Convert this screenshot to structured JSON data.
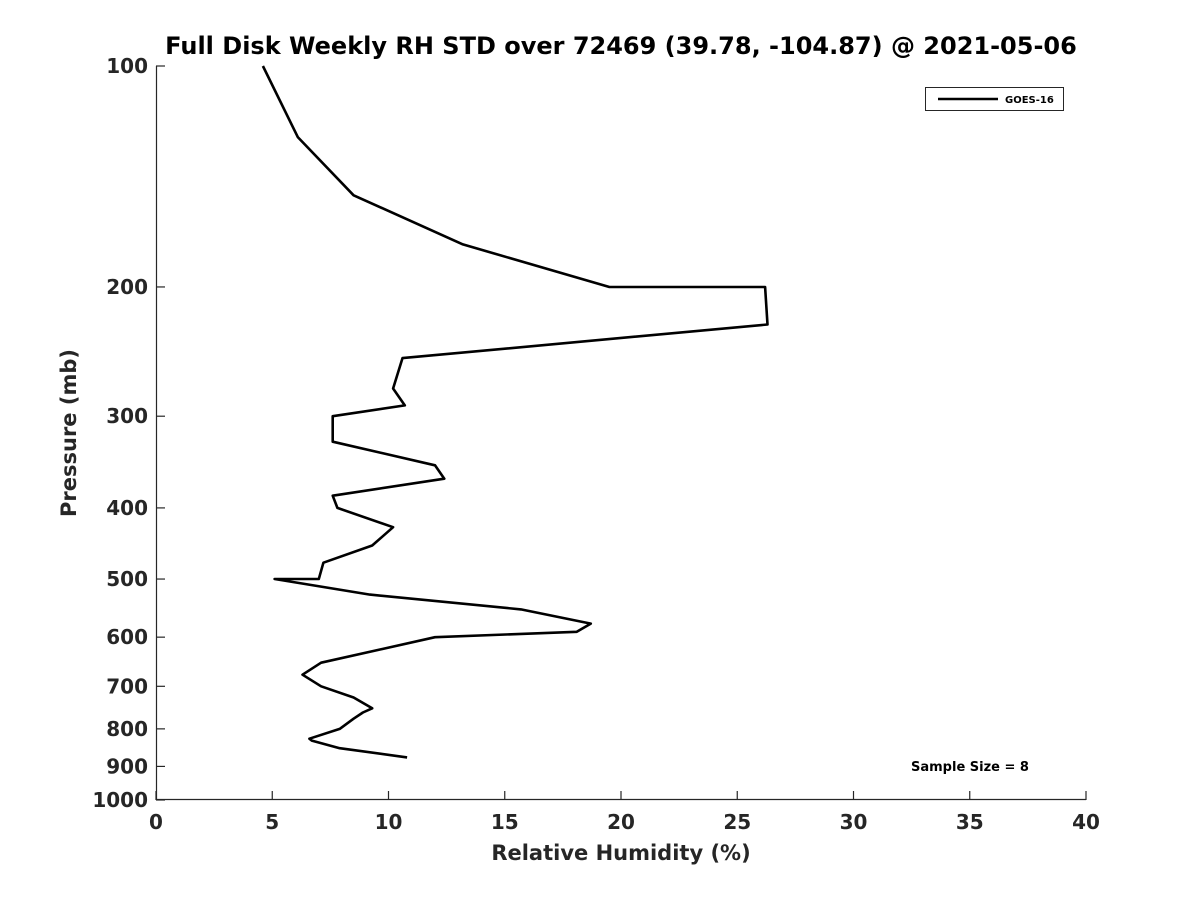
{
  "chart_data": {
    "type": "line",
    "title": "Full Disk Weekly RH STD over 72469 (39.78, -104.87) @ 2021-05-06",
    "xlabel": "Relative Humidity (%)",
    "ylabel": "Pressure (mb)",
    "xlim": [
      0,
      40
    ],
    "ylim": [
      100,
      1000
    ],
    "y_scale": "log",
    "y_reversed": true,
    "x_ticks": [
      "0",
      "5",
      "10",
      "15",
      "20",
      "25",
      "30",
      "35",
      "40"
    ],
    "y_ticks": [
      "100",
      "200",
      "300",
      "400",
      "500",
      "600",
      "700",
      "800",
      "900",
      "1000"
    ],
    "grid": false,
    "legend_position": "top-right",
    "annotation": "Sample Size = 8",
    "series": [
      {
        "name": "GOES-16",
        "color": "#000000",
        "points": [
          {
            "x": 4.6,
            "y": 100
          },
          {
            "x": 6.1,
            "y": 125
          },
          {
            "x": 8.5,
            "y": 150
          },
          {
            "x": 13.2,
            "y": 175
          },
          {
            "x": 19.5,
            "y": 200
          },
          {
            "x": 26.2,
            "y": 200
          },
          {
            "x": 26.3,
            "y": 225
          },
          {
            "x": 10.6,
            "y": 250
          },
          {
            "x": 10.2,
            "y": 275
          },
          {
            "x": 10.7,
            "y": 290
          },
          {
            "x": 7.6,
            "y": 300
          },
          {
            "x": 7.6,
            "y": 325
          },
          {
            "x": 12.0,
            "y": 350
          },
          {
            "x": 12.4,
            "y": 365
          },
          {
            "x": 7.6,
            "y": 385
          },
          {
            "x": 7.8,
            "y": 400
          },
          {
            "x": 10.2,
            "y": 425
          },
          {
            "x": 9.3,
            "y": 450
          },
          {
            "x": 7.2,
            "y": 475
          },
          {
            "x": 7.0,
            "y": 500
          },
          {
            "x": 5.1,
            "y": 500
          },
          {
            "x": 9.2,
            "y": 525
          },
          {
            "x": 15.7,
            "y": 550
          },
          {
            "x": 18.7,
            "y": 575
          },
          {
            "x": 18.1,
            "y": 590
          },
          {
            "x": 12.0,
            "y": 600
          },
          {
            "x": 7.1,
            "y": 650
          },
          {
            "x": 6.3,
            "y": 675
          },
          {
            "x": 7.1,
            "y": 700
          },
          {
            "x": 8.5,
            "y": 725
          },
          {
            "x": 9.3,
            "y": 750
          },
          {
            "x": 8.9,
            "y": 760
          },
          {
            "x": 8.5,
            "y": 775
          },
          {
            "x": 7.9,
            "y": 800
          },
          {
            "x": 6.6,
            "y": 825
          },
          {
            "x": 6.7,
            "y": 830
          },
          {
            "x": 7.9,
            "y": 850
          },
          {
            "x": 10.8,
            "y": 875
          }
        ]
      }
    ]
  }
}
